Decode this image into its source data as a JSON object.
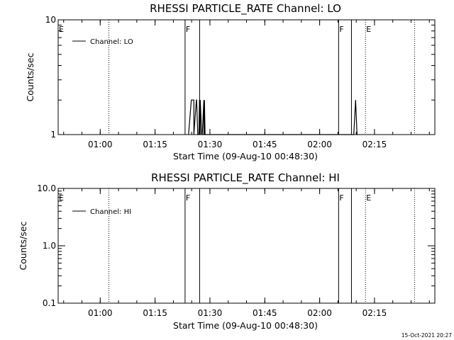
{
  "chart_data": [
    {
      "type": "line",
      "title": "RHESSI PARTICLE_RATE Channel: LO",
      "xlabel": "Start Time (09-Aug-10 00:48:30)",
      "ylabel": "Counts/sec",
      "yscale": "log",
      "ylim": [
        1,
        10
      ],
      "xlim": [
        "00:48:30",
        "02:31:30"
      ],
      "xticks": [
        "01:00",
        "01:15",
        "01:30",
        "01:45",
        "02:00",
        "02:15"
      ],
      "yticks": [
        "1",
        "10"
      ],
      "grid": false,
      "legend_position": "top-left",
      "series": [
        {
          "name": "Channel: LO",
          "x": [
            "01:24:09",
            "01:24:09",
            "01:24:55",
            "01:25:36",
            "01:25:36",
            "01:26:17",
            "01:26:22",
            "01:26:40",
            "01:26:59",
            "01:27:08",
            "01:27:20",
            "01:27:21",
            "01:27:45",
            "01:27:54",
            "01:28:20",
            "01:28:20",
            "01:28:30",
            "01:28:30",
            "01:28:40",
            "01:28:40",
            "02:09:20",
            "02:09:50",
            "02:10:13",
            "02:10:30"
          ],
          "y": [
            1,
            1,
            2,
            2,
            1,
            2,
            2,
            1,
            1,
            2,
            1,
            2,
            1,
            1,
            2,
            1,
            1,
            2,
            1,
            1,
            1,
            2,
            1,
            1
          ]
        }
      ],
      "markers": [
        {
          "label": "E",
          "time": "00:48:30",
          "style": "dotted"
        },
        {
          "label": "",
          "time": "01:02:22",
          "style": "dotted"
        },
        {
          "label": "F",
          "time": "01:23:12",
          "style": "solid"
        },
        {
          "label": "",
          "time": "01:27:11",
          "style": "solid"
        },
        {
          "label": "F",
          "time": "02:05:11",
          "style": "solid"
        },
        {
          "label": "",
          "time": "02:08:42",
          "style": "solid"
        },
        {
          "label": "E",
          "time": "02:12:32",
          "style": "dotted"
        },
        {
          "label": "",
          "time": "02:25:57",
          "style": "dotted"
        }
      ]
    },
    {
      "type": "line",
      "title": "RHESSI PARTICLE_RATE Channel: HI",
      "xlabel": "Start Time (09-Aug-10 00:48:30)",
      "ylabel": "Counts/sec",
      "yscale": "log",
      "ylim": [
        0.1,
        10
      ],
      "xlim": [
        "00:48:30",
        "02:31:30"
      ],
      "xticks": [
        "01:00",
        "01:15",
        "01:30",
        "01:45",
        "02:00",
        "02:15"
      ],
      "yticks": [
        "0.1",
        "1.0",
        "10.0"
      ],
      "grid": false,
      "legend_position": "top-left",
      "series": [
        {
          "name": "Channel: HI",
          "x": [],
          "y": []
        }
      ],
      "markers": [
        {
          "label": "E",
          "time": "00:48:30",
          "style": "dotted"
        },
        {
          "label": "",
          "time": "01:02:22",
          "style": "dotted"
        },
        {
          "label": "F",
          "time": "01:23:12",
          "style": "solid"
        },
        {
          "label": "",
          "time": "01:27:11",
          "style": "solid"
        },
        {
          "label": "F",
          "time": "02:05:11",
          "style": "solid"
        },
        {
          "label": "",
          "time": "02:08:42",
          "style": "solid"
        },
        {
          "label": "E",
          "time": "02:12:32",
          "style": "dotted"
        },
        {
          "label": "",
          "time": "02:25:57",
          "style": "dotted"
        }
      ]
    }
  ],
  "footer": {
    "timestamp": "15-Oct-2021 20:27"
  }
}
